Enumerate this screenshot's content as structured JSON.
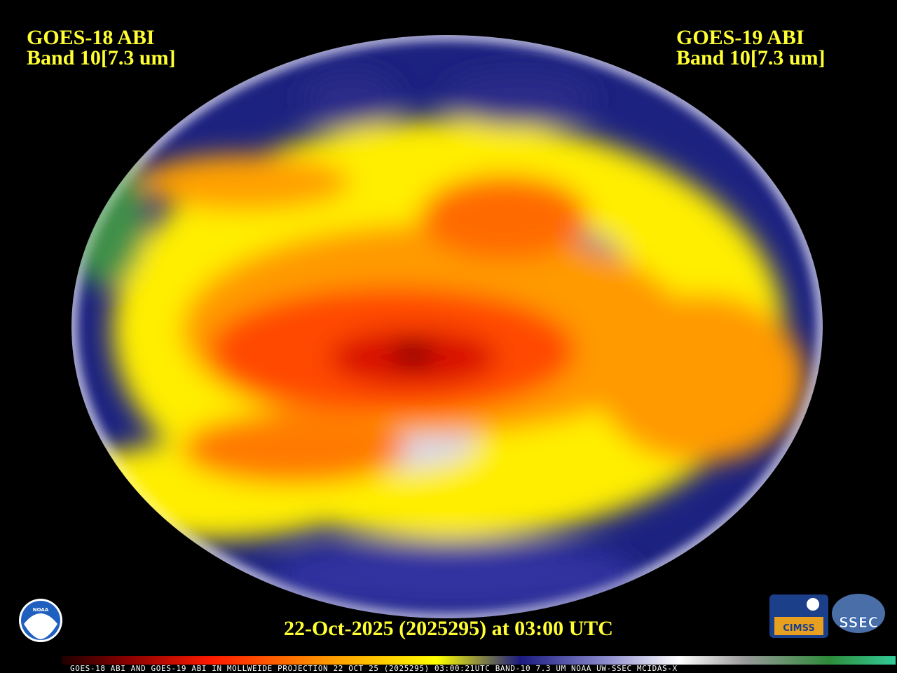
{
  "left_title": {
    "line1": "GOES-18 ABI",
    "line2": "Band 10[7.3 um]"
  },
  "right_title": {
    "line1": "GOES-19 ABI",
    "line2": "Band 10[7.3 um]"
  },
  "timestamp": "22-Oct-2025 (2025295) at 03:00 UTC",
  "logos": {
    "noaa": "NOAA",
    "cimss": "CIMSS",
    "ssec": "SSEC"
  },
  "footer": "GOES-18 ABI AND GOES-19 ABI IN MOLLWEIDE PROJECTION 22 OCT 25 (2025295) 03:00:21UTC BAND-10 7.3 UM NOAA UW-SSEC MCIDAS-X"
}
